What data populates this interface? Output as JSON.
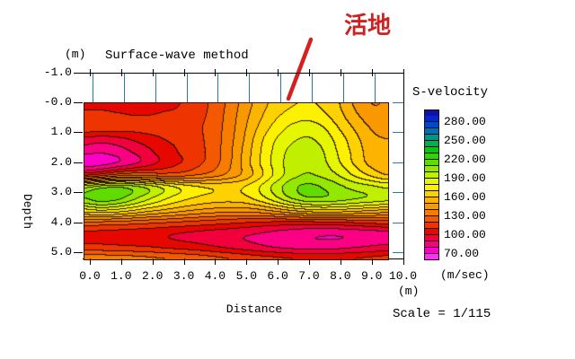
{
  "title": "Surface-wave method",
  "annotation": {
    "text": "活地",
    "color": "#cc2222"
  },
  "axes": {
    "y_unit": "(m)",
    "y_label": "Depth",
    "y_ticks": [
      "-1.0",
      "-0.0",
      "1.0",
      "2.0",
      "3.0",
      "4.0",
      "5.0"
    ],
    "x_ticks": [
      "0.0",
      "1.0",
      "2.0",
      "3.0",
      "4.0",
      "5.0",
      "6.0",
      "7.0",
      "8.0",
      "9.0",
      "10.0"
    ],
    "x_label": "Distance",
    "x_unit": "(m)"
  },
  "legend": {
    "title": "S-velocity",
    "labels": [
      "280.00",
      "250.00",
      "220.00",
      "190.00",
      "160.00",
      "130.00",
      "100.00",
      "70.00"
    ],
    "unit": "(m/sec)"
  },
  "footer": {
    "scale_text": "Scale = 1/115"
  },
  "chart_data": {
    "type": "heatmap",
    "title": "Surface-wave method",
    "xlabel": "Distance (m)",
    "ylabel": "Depth (m)",
    "value_label": "S-velocity (m/sec)",
    "x_range_m": [
      0,
      10
    ],
    "depth_range_m": [
      -1.0,
      5.2
    ],
    "contour_interval_m_per_sec": 10,
    "value_range_m_per_sec": [
      60,
      300
    ],
    "x_values_m": [
      0,
      0.5,
      1,
      1.5,
      2,
      2.5,
      3,
      3.5,
      4,
      4.5,
      5,
      5.5,
      6,
      6.5,
      7,
      7.5,
      8,
      8.5,
      9,
      9.5
    ],
    "depth_values_m": [
      0,
      0.4,
      0.8,
      1.2,
      1.6,
      2.0,
      2.4,
      2.8,
      3.2,
      3.6,
      4.0,
      4.4,
      4.8,
      5.2
    ],
    "s_velocity_grid_m_per_sec": [
      [
        108,
        108,
        107,
        107,
        107,
        108,
        110,
        114,
        122,
        132,
        144,
        155,
        164,
        169,
        171,
        168,
        160,
        148,
        140,
        141
      ],
      [
        112,
        112,
        111,
        110,
        110,
        111,
        112,
        116,
        123,
        133,
        146,
        158,
        168,
        174,
        176,
        172,
        163,
        152,
        144,
        142
      ],
      [
        117,
        116,
        115,
        114,
        114,
        114,
        115,
        118,
        124,
        134,
        148,
        162,
        174,
        182,
        185,
        180,
        169,
        158,
        149,
        144
      ],
      [
        97,
        95,
        97,
        101,
        106,
        110,
        113,
        117,
        124,
        135,
        150,
        167,
        180,
        188,
        191,
        186,
        175,
        163,
        153,
        150
      ],
      [
        84,
        82,
        85,
        91,
        98,
        105,
        111,
        116,
        124,
        136,
        152,
        169,
        183,
        193,
        196,
        190,
        178,
        166,
        155,
        152
      ],
      [
        74,
        76,
        81,
        88,
        96,
        104,
        110,
        117,
        125,
        137,
        153,
        170,
        184,
        195,
        198,
        192,
        181,
        168,
        157,
        153
      ],
      [
        108,
        115,
        124,
        128,
        127,
        125,
        126,
        130,
        135,
        143,
        153,
        167,
        183,
        196,
        201,
        197,
        189,
        178,
        168,
        160
      ],
      [
        196,
        205,
        209,
        204,
        196,
        186,
        177,
        171,
        168,
        167,
        170,
        180,
        194,
        207,
        212,
        209,
        202,
        196,
        192,
        188
      ],
      [
        209,
        215,
        212,
        202,
        191,
        181,
        173,
        168,
        165,
        164,
        166,
        174,
        186,
        199,
        207,
        207,
        204,
        200,
        197,
        194
      ],
      [
        174,
        178,
        175,
        169,
        162,
        157,
        152,
        148,
        145,
        143,
        143,
        146,
        152,
        159,
        164,
        166,
        165,
        162,
        159,
        156
      ],
      [
        128,
        127,
        126,
        124,
        122,
        120,
        118,
        116,
        114,
        112,
        110,
        108,
        107,
        106,
        106,
        107,
        108,
        110,
        112,
        114
      ],
      [
        107,
        106,
        105,
        104,
        103,
        101,
        99,
        97,
        95,
        93,
        91,
        89,
        86,
        84,
        82,
        81,
        81,
        82,
        83,
        85
      ],
      [
        113,
        113,
        112,
        111,
        110,
        108,
        106,
        104,
        101,
        98,
        95,
        92,
        89,
        87,
        86,
        86,
        87,
        89,
        91,
        93
      ],
      [
        136,
        136,
        135,
        134,
        132,
        130,
        128,
        126,
        123,
        120,
        117,
        114,
        112,
        110,
        109,
        108,
        109,
        110,
        112,
        114
      ]
    ],
    "colormap_bands": [
      {
        "from": 60,
        "color": "#ff30f0"
      },
      {
        "from": 70,
        "color": "#ff00c8"
      },
      {
        "from": 80,
        "color": "#fb0084"
      },
      {
        "from": 90,
        "color": "#f2003c"
      },
      {
        "from": 100,
        "color": "#e60800"
      },
      {
        "from": 110,
        "color": "#ee3400"
      },
      {
        "from": 120,
        "color": "#f45800"
      },
      {
        "from": 130,
        "color": "#f87c00"
      },
      {
        "from": 140,
        "color": "#fa9800"
      },
      {
        "from": 150,
        "color": "#fcb400"
      },
      {
        "from": 160,
        "color": "#fed200"
      },
      {
        "from": 170,
        "color": "#fdf000"
      },
      {
        "from": 180,
        "color": "#e4f600"
      },
      {
        "from": 190,
        "color": "#c0f000"
      },
      {
        "from": 200,
        "color": "#92e800"
      },
      {
        "from": 210,
        "color": "#60dc00"
      },
      {
        "from": 220,
        "color": "#30d400"
      },
      {
        "from": 230,
        "color": "#0cc414"
      },
      {
        "from": 240,
        "color": "#00b050"
      },
      {
        "from": 250,
        "color": "#009488"
      },
      {
        "from": 260,
        "color": "#0070b0"
      },
      {
        "from": 270,
        "color": "#0048cc"
      },
      {
        "from": 280,
        "color": "#0028d4"
      },
      {
        "from": 290,
        "color": "#1410a8"
      }
    ],
    "contour_line_color": "#2a1400",
    "receiver_marks": {
      "x_positions_m": [
        0,
        1,
        2,
        3,
        4,
        5,
        6,
        7,
        8,
        9
      ],
      "color": "#2878a8"
    },
    "grid": false,
    "legend_position": "right"
  }
}
